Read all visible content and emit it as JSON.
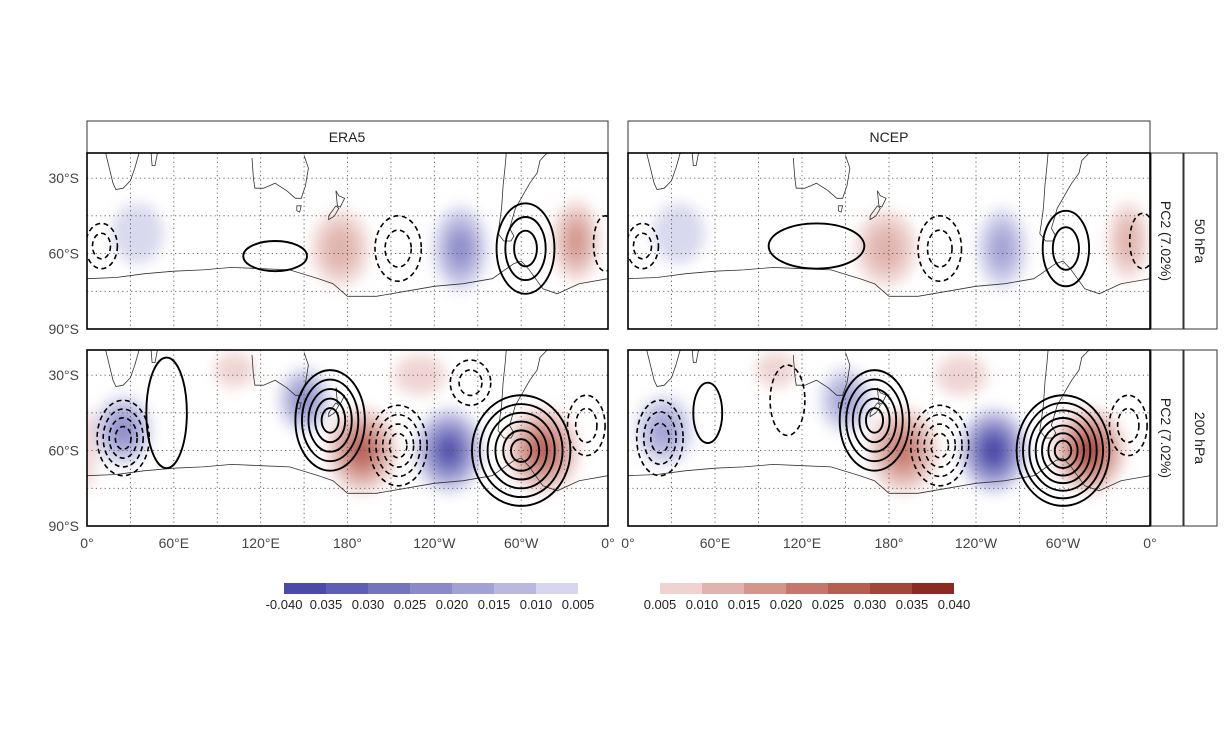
{
  "chart_data": {
    "type": "heatmap",
    "columns": [
      "ERA5",
      "NCEP"
    ],
    "rows": [
      "50 hPa",
      "200 hPa"
    ],
    "row_sublabel": "PC2 (7.02%)",
    "x_ticks": [
      "0°",
      "60°E",
      "120°E",
      "180°",
      "120°W",
      "60°W",
      "0°"
    ],
    "x_values": [
      0,
      60,
      120,
      180,
      240,
      300,
      360
    ],
    "y_ticks": [
      "30°S",
      "60°S",
      "90°S"
    ],
    "y_values": [
      -30,
      -60,
      -90
    ],
    "xlim": [
      0,
      360
    ],
    "ylim": [
      -90,
      -20
    ],
    "grid": true,
    "colorbar": {
      "negative_labels": [
        "-0.040",
        "0.035",
        "0.030",
        "0.025",
        "0.020",
        "0.015",
        "0.010",
        "0.005"
      ],
      "positive_labels": [
        "0.005",
        "0.010",
        "0.015",
        "0.020",
        "0.025",
        "0.030",
        "0.035",
        "0.040"
      ],
      "negative_colors": [
        "#4a4aa8",
        "#5e5eb3",
        "#7474bd",
        "#8a8ac8",
        "#a1a1d4",
        "#b9b9e0",
        "#d6d6ee"
      ],
      "positive_colors": [
        "#eed3d0",
        "#e0b4ae",
        "#d3968d",
        "#c4786d",
        "#b45f52",
        "#a0463a",
        "#8a2a22"
      ]
    },
    "panels": [
      {
        "column": "ERA5",
        "row": "50 hPa",
        "shading": [
          {
            "lon": 35,
            "lat": -52,
            "v": -0.007,
            "rx": 18,
            "ry": 12
          },
          {
            "lon": 175,
            "lat": -58,
            "v": 0.009,
            "rx": 20,
            "ry": 15
          },
          {
            "lon": 258,
            "lat": -58,
            "v": -0.02,
            "rx": 19,
            "ry": 17
          },
          {
            "lon": 338,
            "lat": -55,
            "v": 0.013,
            "rx": 16,
            "ry": 16
          }
        ],
        "contours": [
          {
            "lon": 10,
            "lat": -57,
            "sign": -1,
            "rx": 11,
            "ry": 9,
            "n": 2
          },
          {
            "lon": 130,
            "lat": -61,
            "sign": 1,
            "rx": 22,
            "ry": 6,
            "n": 1
          },
          {
            "lon": 215,
            "lat": -58,
            "sign": -1,
            "rx": 16,
            "ry": 13,
            "n": 2
          },
          {
            "lon": 303,
            "lat": -58,
            "sign": 1,
            "rx": 20,
            "ry": 18,
            "n": 3
          },
          {
            "lon": 358,
            "lat": -56,
            "sign": -1,
            "rx": 8,
            "ry": 11,
            "n": 1
          }
        ]
      },
      {
        "column": "NCEP",
        "row": "50 hPa",
        "shading": [
          {
            "lon": 35,
            "lat": -52,
            "v": -0.005,
            "rx": 18,
            "ry": 12
          },
          {
            "lon": 178,
            "lat": -58,
            "v": 0.008,
            "rx": 21,
            "ry": 15
          },
          {
            "lon": 258,
            "lat": -58,
            "v": -0.016,
            "rx": 17,
            "ry": 16
          },
          {
            "lon": 345,
            "lat": -55,
            "v": 0.01,
            "rx": 14,
            "ry": 15
          }
        ],
        "contours": [
          {
            "lon": 10,
            "lat": -57,
            "sign": -1,
            "rx": 11,
            "ry": 9,
            "n": 2
          },
          {
            "lon": 130,
            "lat": -57,
            "sign": 1,
            "rx": 33,
            "ry": 9,
            "n": 1
          },
          {
            "lon": 215,
            "lat": -58,
            "sign": -1,
            "rx": 15,
            "ry": 13,
            "n": 2
          },
          {
            "lon": 302,
            "lat": -58,
            "sign": 1,
            "rx": 16,
            "ry": 15,
            "n": 2
          },
          {
            "lon": 355,
            "lat": -55,
            "sign": -1,
            "rx": 9,
            "ry": 11,
            "n": 1
          }
        ]
      },
      {
        "column": "ERA5",
        "row": "200 hPa",
        "shading": [
          {
            "lon": 25,
            "lat": -52,
            "v": -0.02,
            "rx": 20,
            "ry": 14
          },
          {
            "lon": 102,
            "lat": -28,
            "v": 0.007,
            "rx": 14,
            "ry": 7
          },
          {
            "lon": 150,
            "lat": -40,
            "v": -0.018,
            "rx": 18,
            "ry": 13
          },
          {
            "lon": 190,
            "lat": -60,
            "v": 0.025,
            "rx": 24,
            "ry": 17
          },
          {
            "lon": 250,
            "lat": -60,
            "v": -0.036,
            "rx": 24,
            "ry": 17
          },
          {
            "lon": 315,
            "lat": -60,
            "v": 0.027,
            "rx": 25,
            "ry": 17
          },
          {
            "lon": 230,
            "lat": -30,
            "v": 0.007,
            "rx": 18,
            "ry": 8
          },
          {
            "lon": 0,
            "lat": -60,
            "v": 0.007,
            "rx": 6,
            "ry": 16
          }
        ],
        "contours": [
          {
            "lon": 25,
            "lat": -55,
            "sign": -1,
            "rx": 18,
            "ry": 15,
            "n": 4
          },
          {
            "lon": 55,
            "lat": -45,
            "sign": 1,
            "rx": 14,
            "ry": 22,
            "n": 1
          },
          {
            "lon": 168,
            "lat": -48,
            "sign": 1,
            "rx": 24,
            "ry": 20,
            "n": 5
          },
          {
            "lon": 215,
            "lat": -58,
            "sign": -1,
            "rx": 20,
            "ry": 16,
            "n": 4
          },
          {
            "lon": 300,
            "lat": -60,
            "sign": 1,
            "rx": 34,
            "ry": 22,
            "n": 6
          },
          {
            "lon": 265,
            "lat": -33,
            "sign": -1,
            "rx": 14,
            "ry": 9,
            "n": 2
          },
          {
            "lon": 345,
            "lat": -50,
            "sign": -1,
            "rx": 13,
            "ry": 12,
            "n": 2
          }
        ]
      },
      {
        "column": "NCEP",
        "row": "200 hPa",
        "shading": [
          {
            "lon": 25,
            "lat": -52,
            "v": -0.017,
            "rx": 20,
            "ry": 14
          },
          {
            "lon": 102,
            "lat": -28,
            "v": 0.006,
            "rx": 14,
            "ry": 7
          },
          {
            "lon": 150,
            "lat": -40,
            "v": -0.016,
            "rx": 18,
            "ry": 13
          },
          {
            "lon": 190,
            "lat": -60,
            "v": 0.022,
            "rx": 24,
            "ry": 17
          },
          {
            "lon": 252,
            "lat": -60,
            "v": -0.038,
            "rx": 24,
            "ry": 17
          },
          {
            "lon": 318,
            "lat": -60,
            "v": 0.028,
            "rx": 25,
            "ry": 17
          },
          {
            "lon": 230,
            "lat": -30,
            "v": 0.006,
            "rx": 18,
            "ry": 8
          }
        ],
        "contours": [
          {
            "lon": 22,
            "lat": -55,
            "sign": -1,
            "rx": 16,
            "ry": 15,
            "n": 3
          },
          {
            "lon": 55,
            "lat": -45,
            "sign": 1,
            "rx": 10,
            "ry": 12,
            "n": 1
          },
          {
            "lon": 170,
            "lat": -48,
            "sign": 1,
            "rx": 24,
            "ry": 20,
            "n": 5
          },
          {
            "lon": 215,
            "lat": -58,
            "sign": -1,
            "rx": 20,
            "ry": 16,
            "n": 4
          },
          {
            "lon": 300,
            "lat": -60,
            "sign": 1,
            "rx": 32,
            "ry": 22,
            "n": 7
          },
          {
            "lon": 110,
            "lat": -40,
            "sign": -1,
            "rx": 12,
            "ry": 14,
            "n": 1
          },
          {
            "lon": 345,
            "lat": -50,
            "sign": -1,
            "rx": 13,
            "ry": 12,
            "n": 2
          }
        ]
      }
    ]
  }
}
